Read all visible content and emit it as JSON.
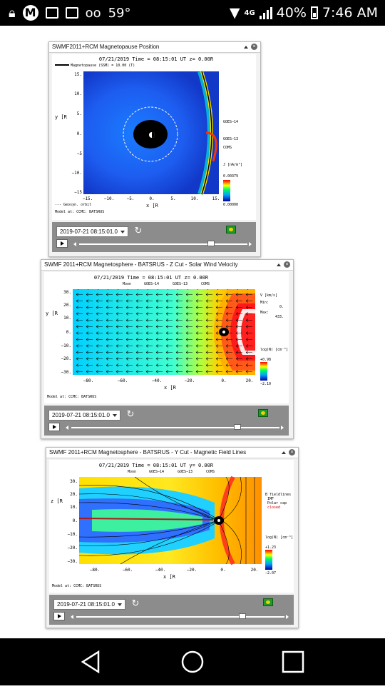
{
  "status_bar": {
    "temperature": "59°",
    "network": "4G",
    "battery": "40%",
    "time": "7:46 AM"
  },
  "widgets": [
    {
      "title": "SWMF2011+RCM Magnetopause Position",
      "plot_title": "07/21/2019 Time = 08:15:01 UT z= 0.00R",
      "legend_line": "Magnetopause (SSM) = 10.00 (T)",
      "y_label": "y [R",
      "x_label": "x [R",
      "x_ticks": [
        "−15.",
        "−10.",
        "−5.",
        "0.",
        "5.",
        "10.",
        "15."
      ],
      "y_ticks": [
        "15.",
        "10.",
        "5.",
        "0.",
        "−5",
        "−10.",
        "−15"
      ],
      "markers": [
        "GOES−14",
        "GOES−13",
        "COMS"
      ],
      "colorbar_label": "J [nA/m²]",
      "colorbar_max": "0.00379",
      "colorbar_min": "0.00000",
      "orbit_label": "--- Geosyn. orbit",
      "model_label": "Model at: CCMC: BATSRUS",
      "date": "2019-07-21 08:15:01.0"
    },
    {
      "title": "SWMF 2011+RCM Magnetosphere - BATSRUS - Z Cut - Solar Wind Velocity",
      "plot_title": "07/21/2019 Time = 08:15:01 UT z= 0.00R",
      "legend_items": [
        "Moon",
        "GOES−14",
        "GOES−13",
        "COMS"
      ],
      "y_label": "y [R",
      "x_label": "x [R",
      "x_ticks": [
        "−80.",
        "−60.",
        "−40.",
        "−20.",
        "0.",
        "20."
      ],
      "y_ticks": [
        "30.",
        "20.",
        "10.",
        "0.",
        "−10.",
        "−20.",
        "−30."
      ],
      "vector_label": "V [km/s]",
      "min_label": "Min:",
      "min_value": "0.",
      "max_label": "Max:",
      "max_value": "433.",
      "colorbar_label": "log(N) [cm⁻³]",
      "colorbar_max": "+0.98",
      "colorbar_min": "−2.10",
      "model_label": "Model at: CCMC: BATSRUS",
      "date": "2019-07-21 08:15:01.0"
    },
    {
      "title": "SWMF 2011+RCM Magnetosphere - BATSRUS - Y Cut - Magnetic Field Lines",
      "plot_title": "07/21/2019 Time = 08:15:01 UT y= 0.00R",
      "legend_items": [
        "Moon",
        "GOES−14",
        "GOES−13",
        "COMS"
      ],
      "y_label": "z [R",
      "x_label": "x [R",
      "x_ticks": [
        "−80.",
        "−60.",
        "−40.",
        "−20.",
        "0.",
        "20."
      ],
      "y_ticks": [
        "30.",
        "20.",
        "10.",
        "0.",
        "−10.",
        "−20.",
        "−30."
      ],
      "fieldline_legend": [
        "B fieldlines",
        "IMF",
        "Polar cap",
        "closed"
      ],
      "colorbar_label": "log(N) [cm⁻³]",
      "colorbar_max": "+1.23",
      "colorbar_min": "−2.07",
      "model_label": "Model at: CCMC: BATSRUS",
      "date": "2019-07-21 08:15:01.0"
    }
  ],
  "colors": {
    "status_bg": "#000000",
    "panel_bar": "#8c8c8c",
    "flag_green": "#1f9b2e"
  }
}
